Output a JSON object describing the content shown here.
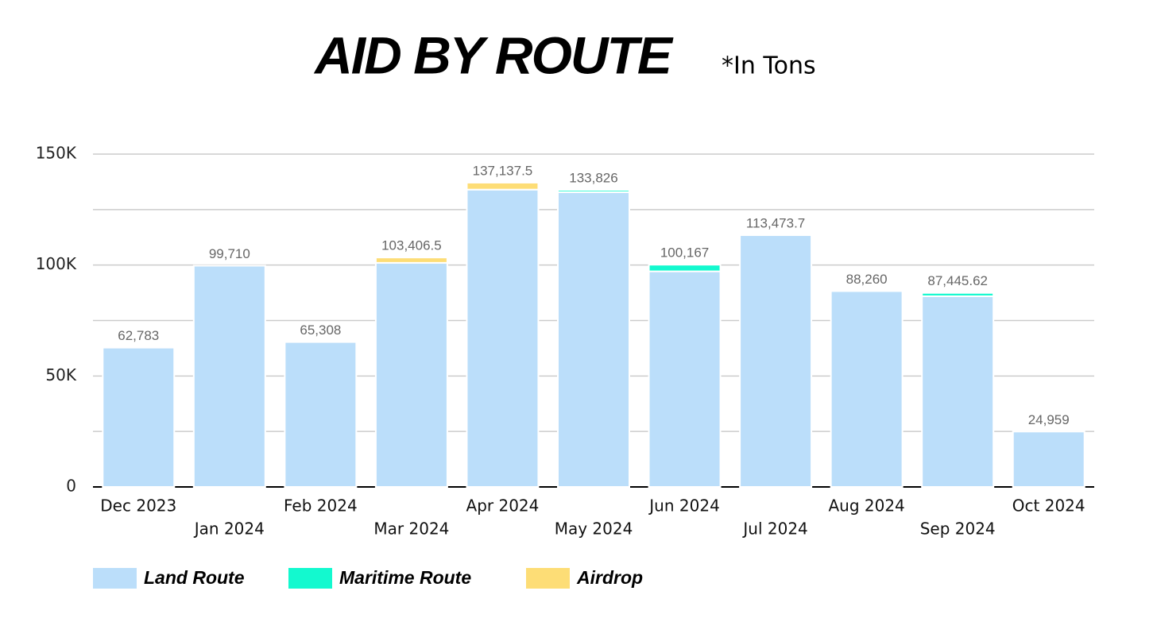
{
  "chart_data": {
    "type": "stacked_bar",
    "title": "AID BY ROUTE",
    "subtitle": "*In Tons",
    "categories": [
      "Dec 2023",
      "Jan 2024",
      "Feb 2024",
      "Mar 2024",
      "Apr 2024",
      "May 2024",
      "Jun 2024",
      "Jul 2024",
      "Aug 2024",
      "Sep 2024",
      "Oct 2024"
    ],
    "series": [
      {
        "name": "Land Route",
        "color": "#bbdefa",
        "values": [
          62783,
          99710,
          65308,
          101000,
          134000,
          132826,
          97167,
          113473.7,
          88260,
          85945.62,
          24959
        ]
      },
      {
        "name": "Maritime Route",
        "color": "#13f9cf",
        "values": [
          0,
          0,
          0,
          0,
          0,
          1000,
          3000,
          0,
          0,
          1500,
          0
        ]
      },
      {
        "name": "Airdrop",
        "color": "#fddd76",
        "values": [
          0,
          0,
          0,
          2406.5,
          3137.5,
          0,
          0,
          0,
          0,
          0,
          0
        ]
      }
    ],
    "totals": [
      62783,
      99710,
      65308,
      103406.5,
      137137.5,
      133826,
      100167,
      113473.7,
      88260,
      87445.62,
      24959
    ],
    "total_labels": [
      "62,783",
      "99,710",
      "65,308",
      "103,406.5",
      "137,137.5",
      "133,826",
      "100,167",
      "113,473.7",
      "88,260",
      "87,445.62",
      "24,959"
    ],
    "ylim": [
      0,
      150000
    ],
    "yticks": [
      0,
      {
        "value": 50000,
        "label": "50K"
      },
      {
        "value": 100000,
        "label": "100K"
      },
      {
        "value": 150000,
        "label": "150K"
      }
    ],
    "minor_yticks": [
      25000,
      75000,
      125000
    ],
    "grid": true,
    "legend": "bottom-left"
  }
}
